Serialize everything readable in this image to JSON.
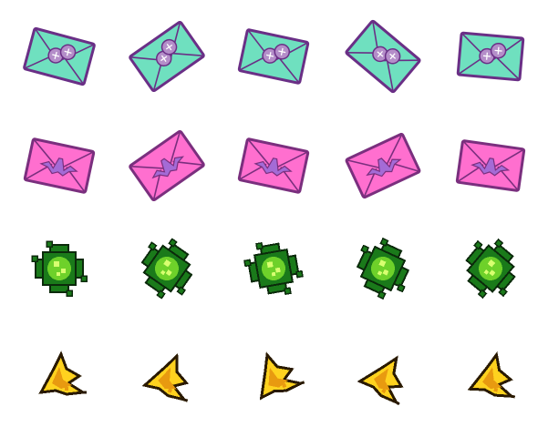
{
  "sheet": {
    "background": "#ffffff",
    "rows": [
      {
        "name": "teal-envelope-with-buttons",
        "icon": "teal-envelope-icon",
        "colors": {
          "fill": "#6fe0bf",
          "stroke": "#6a2f86",
          "button": "#b48ec9"
        },
        "rotations": [
          15,
          -35,
          12,
          40,
          5
        ]
      },
      {
        "name": "pink-envelope-with-bat-seal",
        "icon": "pink-envelope-icon",
        "colors": {
          "fill": "#ff6fcf",
          "stroke": "#7a2f7e",
          "seal": "#a46bd6"
        },
        "rotations": [
          12,
          -35,
          12,
          -25,
          8
        ]
      },
      {
        "name": "green-pixel-bug",
        "icon": "green-bug-icon",
        "colors": {
          "outer": "#1a7a1a",
          "inner": "#6ed12a",
          "glow": "#d8ff70",
          "outline": "#0b2a0b"
        },
        "rotations": [
          0,
          35,
          -10,
          25,
          40
        ]
      },
      {
        "name": "yellow-pixel-bird",
        "icon": "yellow-bird-icon",
        "colors": {
          "fill": "#ffd21f",
          "shade": "#e89a10",
          "outline": "#2a1a00"
        },
        "rotations": [
          0,
          20,
          -20,
          30,
          10
        ]
      }
    ]
  }
}
